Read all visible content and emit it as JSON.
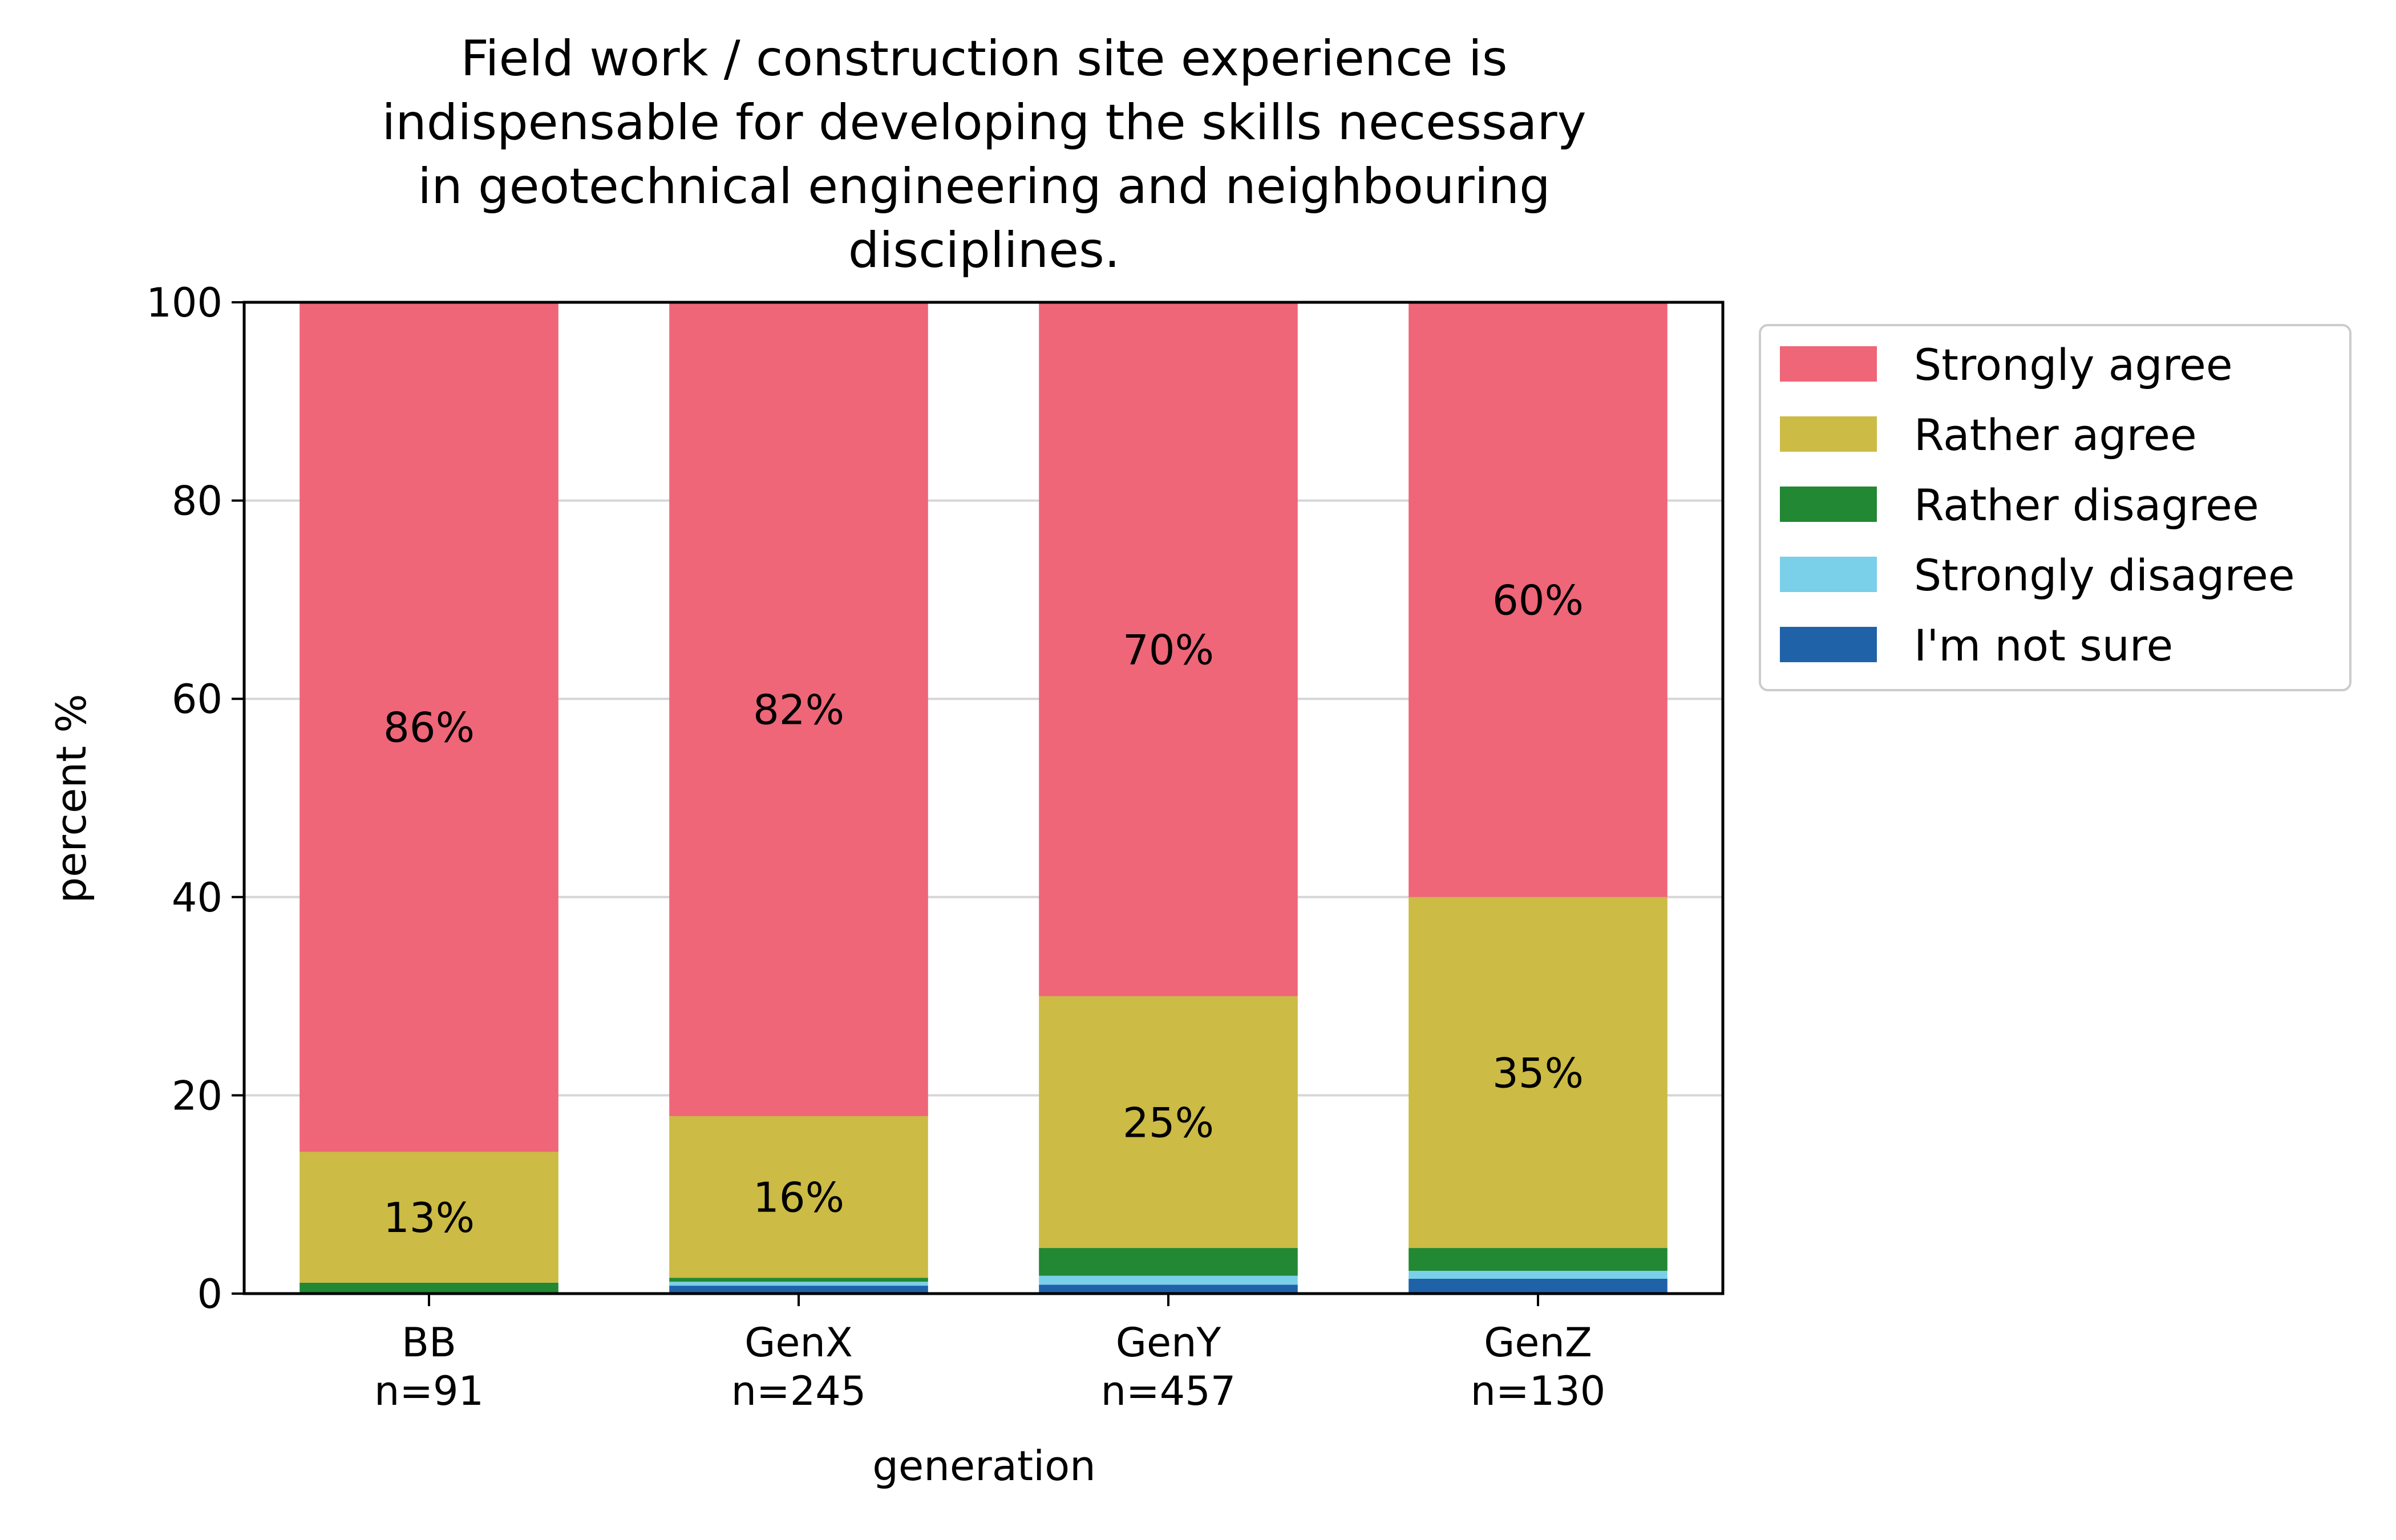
{
  "chart_data": {
    "type": "bar",
    "stacked": true,
    "title_lines": [
      "Field work / construction site experience is",
      "indispensable for developing the skills necessary",
      "in geotechnical engineering and neighbouring",
      "disciplines."
    ],
    "xlabel": "generation",
    "ylabel": "percent %",
    "ylim": [
      0,
      100
    ],
    "yticks": [
      "0",
      "20",
      "40",
      "60",
      "80",
      "100"
    ],
    "grid": "horizontal",
    "legend_position": "outside right, top",
    "categories": [
      {
        "name": "BB",
        "n": "n=91"
      },
      {
        "name": "GenX",
        "n": "n=245"
      },
      {
        "name": "GenY",
        "n": "n=457"
      },
      {
        "name": "GenZ",
        "n": "n=130"
      }
    ],
    "series": [
      {
        "name": "I'm not sure",
        "color": "#1f62a8",
        "values": [
          0.0,
          0.8,
          0.9,
          1.5
        ],
        "labels": [
          "",
          "",
          "",
          ""
        ]
      },
      {
        "name": "Strongly disagree",
        "color": "#7acfe9",
        "values": [
          0.0,
          0.4,
          0.9,
          0.8
        ],
        "labels": [
          "",
          "",
          "",
          ""
        ]
      },
      {
        "name": "Rather disagree",
        "color": "#228833",
        "values": [
          1.1,
          0.4,
          2.8,
          2.3
        ],
        "labels": [
          "",
          "",
          "",
          ""
        ]
      },
      {
        "name": "Rather agree",
        "color": "#ccbb44",
        "values": [
          13.2,
          16.3,
          25.4,
          35.4
        ],
        "labels": [
          "13%",
          "16%",
          "25%",
          "35%"
        ]
      },
      {
        "name": "Strongly agree",
        "color": "#ee6677",
        "values": [
          85.7,
          82.1,
          70.0,
          60.0
        ],
        "labels": [
          "86%",
          "82%",
          "70%",
          "60%"
        ]
      }
    ],
    "legend_order": [
      "Strongly agree",
      "Rather agree",
      "Rather disagree",
      "Strongly disagree",
      "I'm not sure"
    ]
  }
}
